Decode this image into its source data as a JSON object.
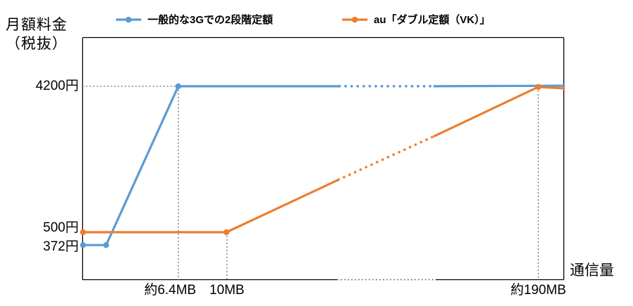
{
  "chart_data": {
    "type": "line",
    "title": "",
    "ylabel_line1": "月額料金",
    "ylabel_line2": "（税抜）",
    "xlabel": "通信量",
    "background": "#ffffff",
    "axis_color": "#000000",
    "guide_color": "#8a8a8a",
    "axis_break_color": "#6e6e6e",
    "legend_position": "top",
    "grid": "off",
    "y_ticks": [
      {
        "label": "4200円",
        "value_yen": 4200,
        "fy": 0.201,
        "label_dy": 0
      },
      {
        "label": "500円",
        "value_yen": 500,
        "fy": 0.804,
        "label_dy": -6
      },
      {
        "label": "372円",
        "value_yen": 372,
        "fy": 0.857,
        "label_dy": 3
      }
    ],
    "x_ticks": [
      {
        "label": "約6.4MB",
        "fx": 0.182
      },
      {
        "label": "10MB",
        "fx": 0.3
      },
      {
        "label": "約190MB",
        "fx": 0.947
      }
    ],
    "axis_break": {
      "fx0": 0.529,
      "fx1": 0.734,
      "note": "x-axis scale break drawn as dotted segment"
    },
    "series": [
      {
        "name": "一般的な3Gでの2段階定額",
        "color": "#5B9BD5",
        "base_fee_yen": 372,
        "cap_fee_yen": 4200,
        "cap_reached_at": "約6.4MB",
        "points": [
          [
            0.001,
            0.857
          ],
          [
            0.049,
            0.857
          ],
          [
            0.199,
            0.201
          ],
          [
            0.534,
            0.201
          ],
          [
            0.731,
            0.201
          ],
          [
            1.0,
            0.199
          ]
        ],
        "dotted_segments": [
          [
            3,
            4
          ]
        ],
        "marker_indices": [
          0,
          1,
          2
        ]
      },
      {
        "name": "au「ダブル定額（VK）」",
        "color": "#ED7D31",
        "base_fee_yen": 500,
        "cap_fee_yen": 4200,
        "flat_until": "10MB",
        "cap_reached_at": "約190MB",
        "points": [
          [
            0.001,
            0.804
          ],
          [
            0.299,
            0.804
          ],
          [
            0.532,
            0.587
          ],
          [
            0.731,
            0.407
          ],
          [
            0.947,
            0.204
          ],
          [
            1.0,
            0.21
          ]
        ],
        "dotted_segments": [
          [
            2,
            3
          ]
        ],
        "marker_indices": [
          0,
          1,
          4
        ]
      }
    ],
    "guides": [
      {
        "type": "h",
        "fy": 0.201,
        "fx0": 0.0,
        "fx1": 0.199
      },
      {
        "type": "v",
        "fx": 0.199,
        "fy0": 0.201,
        "fy1": 1.0
      },
      {
        "type": "v",
        "fx": 0.3,
        "fy0": 0.804,
        "fy1": 1.0
      },
      {
        "type": "v",
        "fx": 0.947,
        "fy0": 0.204,
        "fy1": 1.0
      }
    ]
  }
}
